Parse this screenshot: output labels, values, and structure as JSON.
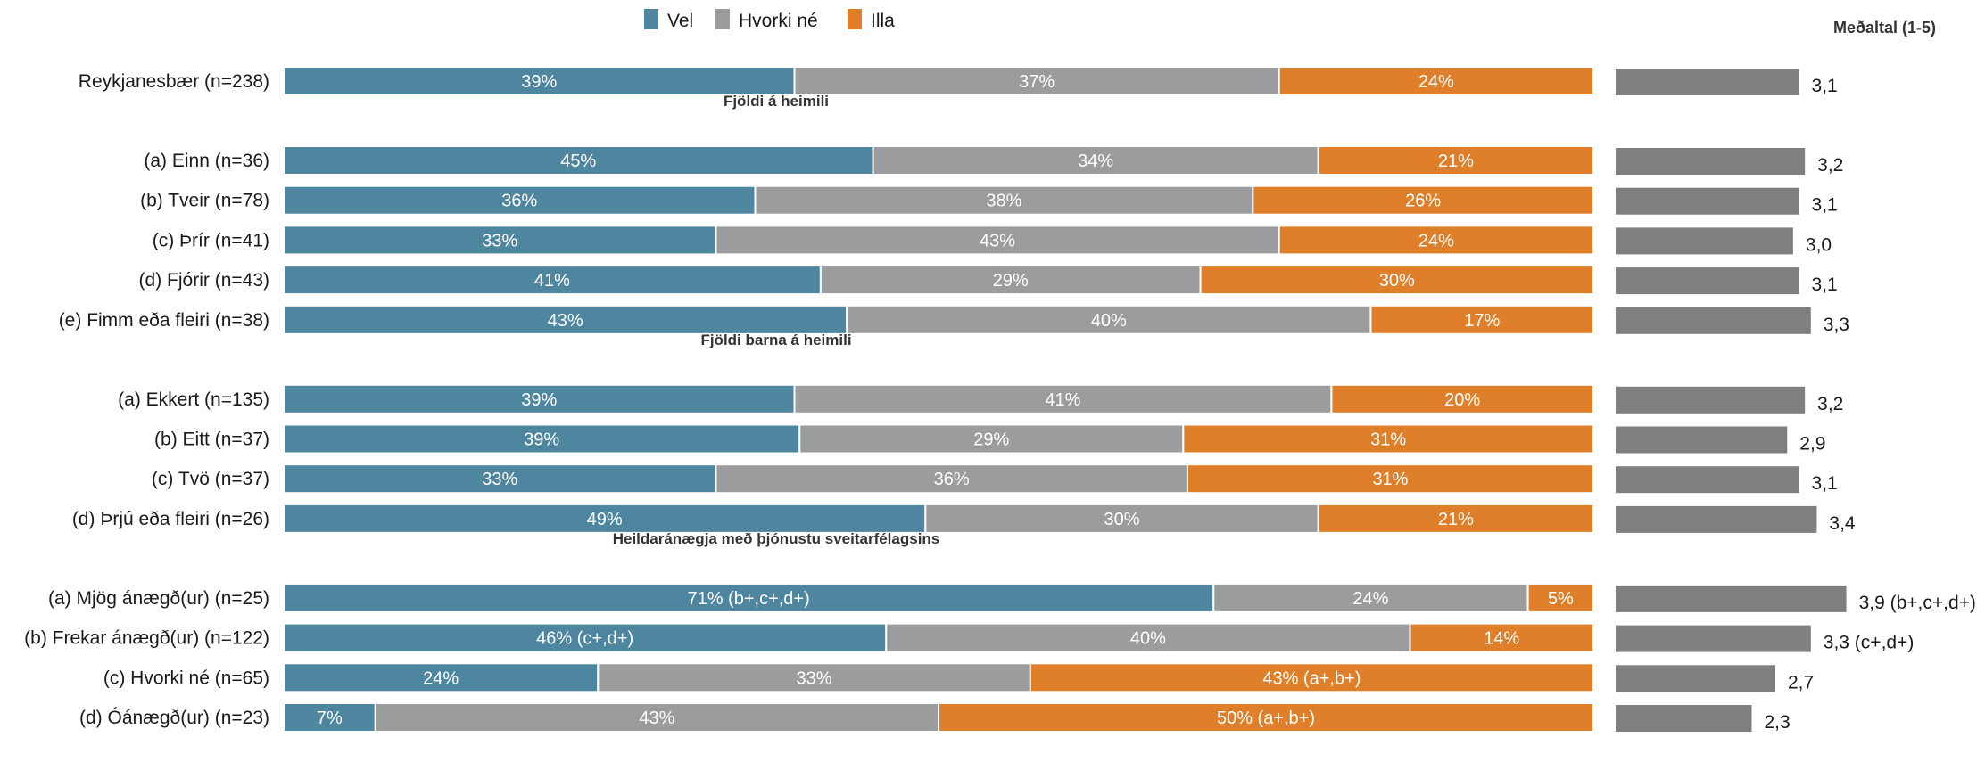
{
  "chart_data": {
    "type": "bar",
    "stacked": true,
    "orientation": "horizontal",
    "mean_title": "Meðaltal (1-5)",
    "legend": [
      {
        "name": "Vel",
        "color": "#4e86a0"
      },
      {
        "name": "Hvorki né",
        "color": "#9a9c9d"
      },
      {
        "name": "Illa",
        "color": "#e07f2a"
      }
    ],
    "mean_bar_color": "#7f7f7f",
    "mean_axis_max": 5,
    "groups": [
      {
        "title": "",
        "rows": [
          {
            "label": "Reykjanesbær (n=238)",
            "values": [
              39,
              37,
              24
            ],
            "texts": [
              "39%",
              "37%",
              "24%"
            ],
            "mean": 3.1,
            "mean_text": "3,1"
          }
        ]
      },
      {
        "title": "Fjöldi á heimili",
        "rows": [
          {
            "label": "(a) Einn (n=36)",
            "values": [
              45,
              34,
              21
            ],
            "texts": [
              "45%",
              "34%",
              "21%"
            ],
            "mean": 3.2,
            "mean_text": "3,2"
          },
          {
            "label": "(b) Tveir (n=78)",
            "values": [
              36,
              38,
              26
            ],
            "texts": [
              "36%",
              "38%",
              "26%"
            ],
            "mean": 3.1,
            "mean_text": "3,1"
          },
          {
            "label": "(c) Þrír (n=41)",
            "values": [
              33,
              43,
              24
            ],
            "texts": [
              "33%",
              "43%",
              "24%"
            ],
            "mean": 3.0,
            "mean_text": "3,0"
          },
          {
            "label": "(d) Fjórir (n=43)",
            "values": [
              41,
              29,
              30
            ],
            "texts": [
              "41%",
              "29%",
              "30%"
            ],
            "mean": 3.1,
            "mean_text": "3,1"
          },
          {
            "label": "(e) Fimm eða fleiri (n=38)",
            "values": [
              43,
              40,
              17
            ],
            "texts": [
              "43%",
              "40%",
              "17%"
            ],
            "mean": 3.3,
            "mean_text": "3,3"
          }
        ]
      },
      {
        "title": "Fjöldi barna á heimili",
        "rows": [
          {
            "label": "(a) Ekkert (n=135)",
            "values": [
              39,
              41,
              20
            ],
            "texts": [
              "39%",
              "41%",
              "20%"
            ],
            "mean": 3.2,
            "mean_text": "3,2"
          },
          {
            "label": "(b) Eitt (n=37)",
            "values": [
              39,
              29,
              31
            ],
            "texts": [
              "39%",
              "29%",
              "31%"
            ],
            "mean": 2.9,
            "mean_text": "2,9"
          },
          {
            "label": "(c) Tvö (n=37)",
            "values": [
              33,
              36,
              31
            ],
            "texts": [
              "33%",
              "36%",
              "31%"
            ],
            "mean": 3.1,
            "mean_text": "3,1"
          },
          {
            "label": "(d) Þrjú eða fleiri (n=26)",
            "values": [
              49,
              30,
              21
            ],
            "texts": [
              "49%",
              "30%",
              "21%"
            ],
            "mean": 3.4,
            "mean_text": "3,4"
          }
        ]
      },
      {
        "title": "Heildaránægja með þjónustu sveitarfélagsins",
        "rows": [
          {
            "label": "(a) Mjög ánægð(ur) (n=25)",
            "values": [
              71,
              24,
              5
            ],
            "texts": [
              "71% (b+,c+,d+)",
              "24%",
              "5%"
            ],
            "mean": 3.9,
            "mean_text": "3,9 (b+,c+,d+)"
          },
          {
            "label": "(b) Frekar ánægð(ur) (n=122)",
            "values": [
              46,
              40,
              14
            ],
            "texts": [
              "46% (c+,d+)",
              "40%",
              "14%"
            ],
            "mean": 3.3,
            "mean_text": "3,3 (c+,d+)"
          },
          {
            "label": "(c) Hvorki né (n=65)",
            "values": [
              24,
              33,
              43
            ],
            "texts": [
              "24%",
              "33%",
              "43% (a+,b+)"
            ],
            "mean": 2.7,
            "mean_text": "2,7"
          },
          {
            "label": "(d) Óánægð(ur) (n=23)",
            "values": [
              7,
              43,
              50
            ],
            "texts": [
              "7%",
              "43%",
              "50% (a+,b+)"
            ],
            "mean": 2.3,
            "mean_text": "2,3"
          }
        ]
      }
    ]
  }
}
